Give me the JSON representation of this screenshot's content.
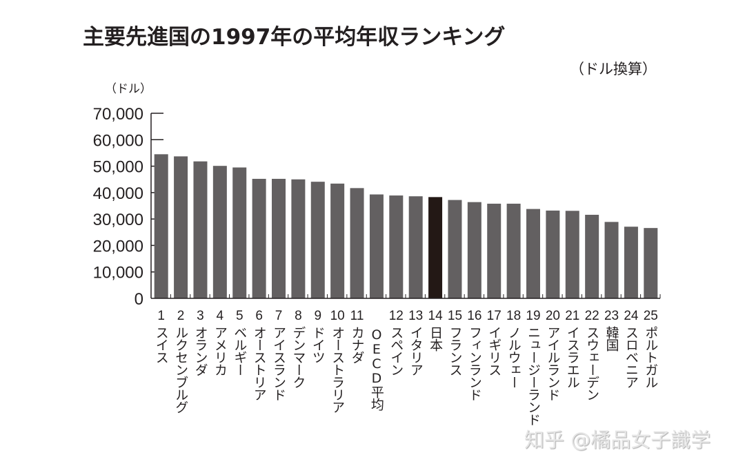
{
  "chart_data": {
    "type": "bar",
    "title": "主要先進国の1997年の平均年収ランキング",
    "subtitle": "（ドル換算）",
    "ylabel": "（ドル）",
    "xlabel": "",
    "ylim": [
      0,
      70000
    ],
    "yticks": [
      0,
      10000,
      20000,
      30000,
      40000,
      50000,
      60000,
      70000
    ],
    "ytick_labels": [
      "0",
      "10,000",
      "20,000",
      "30,000",
      "40,000",
      "50,000",
      "60,000",
      "70,000"
    ],
    "grid": false,
    "legend": "none",
    "bar_color": "#636061",
    "highlight_color": "#231815",
    "highlight_category": "日本",
    "categories": [
      {
        "rank": "1",
        "name": "スイス",
        "value": 54500
      },
      {
        "rank": "2",
        "name": "ルクセンブルグ",
        "value": 53700
      },
      {
        "rank": "3",
        "name": "オランダ",
        "value": 51800
      },
      {
        "rank": "4",
        "name": "アメリカ",
        "value": 50100
      },
      {
        "rank": "5",
        "name": "ベルギー",
        "value": 49500
      },
      {
        "rank": "6",
        "name": "オーストリア",
        "value": 45200
      },
      {
        "rank": "7",
        "name": "アイスランド",
        "value": 45200
      },
      {
        "rank": "8",
        "name": "デンマーク",
        "value": 45000
      },
      {
        "rank": "9",
        "name": "ドイツ",
        "value": 44100
      },
      {
        "rank": "10",
        "name": "オーストラリア",
        "value": 43400
      },
      {
        "rank": "11",
        "name": "カナダ",
        "value": 41700
      },
      {
        "rank": "",
        "name": "OECD平均",
        "value": 39300
      },
      {
        "rank": "12",
        "name": "スペイン",
        "value": 38900
      },
      {
        "rank": "13",
        "name": "イタリア",
        "value": 38600
      },
      {
        "rank": "14",
        "name": "日本",
        "value": 38300
      },
      {
        "rank": "15",
        "name": "フランス",
        "value": 37200
      },
      {
        "rank": "16",
        "name": "フィンランド",
        "value": 36400
      },
      {
        "rank": "17",
        "name": "イギリス",
        "value": 35800
      },
      {
        "rank": "18",
        "name": "ノルウェー",
        "value": 35800
      },
      {
        "rank": "19",
        "name": "ニュージーランド",
        "value": 33800
      },
      {
        "rank": "20",
        "name": "アイルランド",
        "value": 33200
      },
      {
        "rank": "21",
        "name": "イスラエル",
        "value": 33100
      },
      {
        "rank": "22",
        "name": "スウェーデン",
        "value": 31600
      },
      {
        "rank": "23",
        "name": "韓国",
        "value": 28900
      },
      {
        "rank": "24",
        "name": "スロベニア",
        "value": 27100
      },
      {
        "rank": "25",
        "name": "ポルトガル",
        "value": 26600
      }
    ]
  },
  "watermark": "知乎 @橘品女子識学"
}
